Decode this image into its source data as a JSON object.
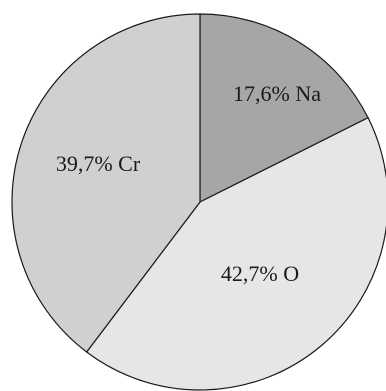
{
  "chart_data": {
    "type": "pie",
    "slices": [
      {
        "label": "17,6% Na",
        "element": "Na",
        "value": 17.6,
        "color": "#a6a6a6"
      },
      {
        "label": "42,7% O",
        "element": "O",
        "value": 42.7,
        "color": "#e6e6e6"
      },
      {
        "label": "39,7% Cr",
        "element": "Cr",
        "value": 39.7,
        "color": "#d0d0d0"
      }
    ],
    "start": "12 o'clock",
    "direction": "clockwise"
  }
}
